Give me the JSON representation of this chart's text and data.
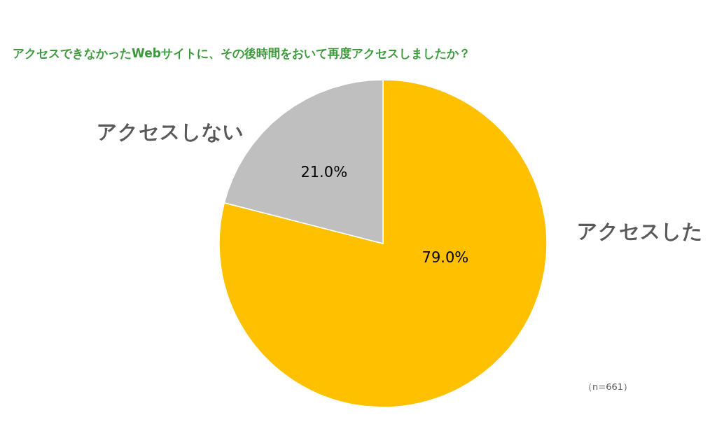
{
  "chart_data": {
    "type": "pie",
    "title": "アクセスできなかったWebサイトに、その後時間をおいて再度アクセスしましたか？",
    "categories": [
      "アクセスした",
      "アクセスしない"
    ],
    "values": [
      79.0,
      21.0
    ],
    "colors": [
      "#ffc000",
      "#bfbfbf"
    ],
    "value_labels": [
      "79.0%",
      "21.0%"
    ],
    "annotations": [
      "（n=661）"
    ]
  }
}
